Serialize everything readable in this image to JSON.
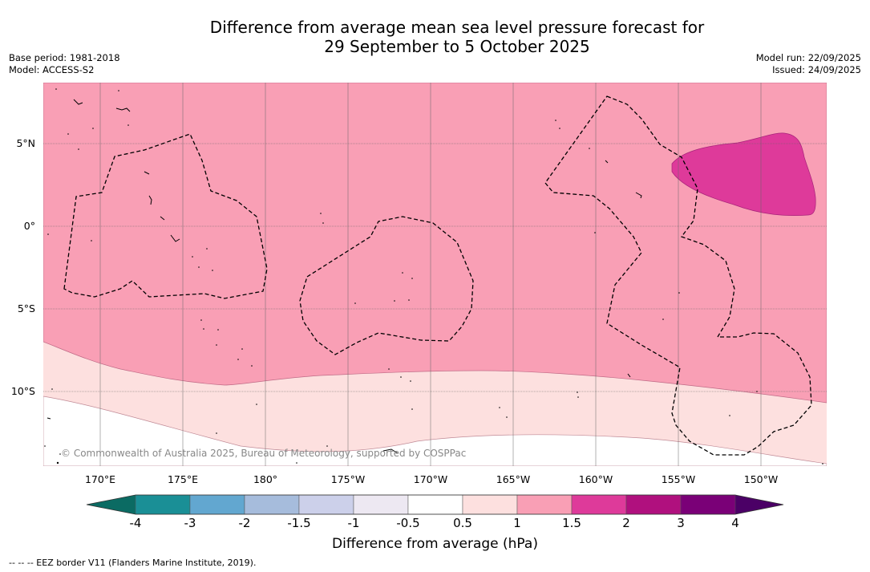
{
  "title_line1": "Difference from average mean sea level pressure forecast for",
  "title_line2": "29 September to 5 October 2025",
  "base_period": "Base period: 1981-2018",
  "model": "Model: ACCESS-S2",
  "model_run": "Model run: 22/09/2025",
  "issued": "Issued: 24/09/2025",
  "copyright": "© Commonwealth of Australia 2025, Bureau of Meteorology, supported by COSPPac",
  "lat_labels": [
    "5°N",
    "0°",
    "5°S",
    "10°S"
  ],
  "lon_labels": [
    "170°E",
    "175°E",
    "180°",
    "175°W",
    "170°W",
    "165°W",
    "160°W",
    "155°W",
    "150°W"
  ],
  "colorbar": {
    "title": "Difference from average (hPa)",
    "ticks": [
      "-4",
      "-3",
      "-2",
      "-1.5",
      "-1",
      "-0.5",
      "0.5",
      "1",
      "1.5",
      "2",
      "3",
      "4"
    ],
    "colors": [
      "#1a8f96",
      "#62a7d0",
      "#a6bcdc",
      "#ccd0ea",
      "#ede8f2",
      "#ffffff",
      "#fde0df",
      "#f99fb5",
      "#de3a9a",
      "#b0107e",
      "#7a0077"
    ],
    "under_color": "#0b6b63",
    "over_color": "#4b0066"
  },
  "footnote": "--  --  -- EEZ border V11 (Flanders Marine Institute, 2019)."
}
